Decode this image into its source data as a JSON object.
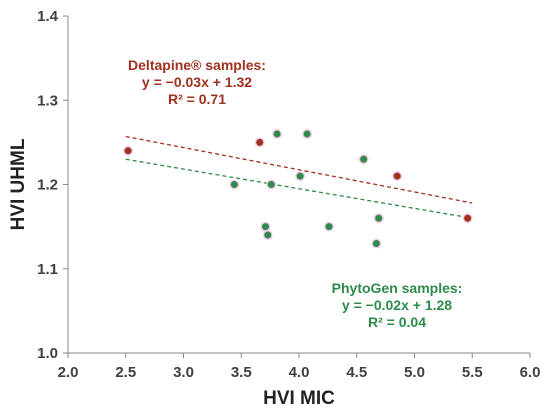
{
  "chart_data": {
    "type": "scatter",
    "xlabel": "HVI MIC",
    "ylabel": "HVI UHML",
    "xlim": [
      2.0,
      6.0
    ],
    "ylim": [
      1.0,
      1.4
    ],
    "xticks": [
      "2.0",
      "2.5",
      "3.0",
      "3.5",
      "4.0",
      "4.5",
      "5.0",
      "5.5",
      "6.0"
    ],
    "yticks": [
      "1.0",
      "1.1",
      "1.2",
      "1.3",
      "1.4"
    ],
    "grid": false,
    "series": [
      {
        "name": "Deltapine® samples",
        "color": "#a0311f",
        "points": [
          {
            "x": 2.52,
            "y": 1.24
          },
          {
            "x": 3.66,
            "y": 1.25
          },
          {
            "x": 4.85,
            "y": 1.21
          },
          {
            "x": 5.46,
            "y": 1.16
          }
        ],
        "trendline": {
          "x": [
            2.5,
            5.5
          ],
          "y": [
            1.257,
            1.178
          ],
          "color": "#a0311f"
        },
        "annotation": {
          "lines": [
            "Deltapine® samples:",
            "y = −0.03x + 1.32",
            "R² = 0.71"
          ],
          "color": "#a0311f"
        }
      },
      {
        "name": "PhytoGen samples",
        "color": "#2e8b4a",
        "points": [
          {
            "x": 3.44,
            "y": 1.2
          },
          {
            "x": 3.71,
            "y": 1.15
          },
          {
            "x": 3.73,
            "y": 1.14
          },
          {
            "x": 3.76,
            "y": 1.2
          },
          {
            "x": 3.81,
            "y": 1.26
          },
          {
            "x": 4.01,
            "y": 1.21
          },
          {
            "x": 4.07,
            "y": 1.26
          },
          {
            "x": 4.26,
            "y": 1.15
          },
          {
            "x": 4.56,
            "y": 1.23
          },
          {
            "x": 4.67,
            "y": 1.13
          },
          {
            "x": 4.69,
            "y": 1.16
          }
        ],
        "trendline": {
          "x": [
            2.5,
            5.5
          ],
          "y": [
            1.23,
            1.16
          ],
          "color": "#2e8b4a"
        },
        "annotation": {
          "lines": [
            "PhytoGen samples:",
            "y = −0.02x + 1.28",
            "R² = 0.04"
          ],
          "color": "#2e8b4a"
        }
      }
    ]
  }
}
